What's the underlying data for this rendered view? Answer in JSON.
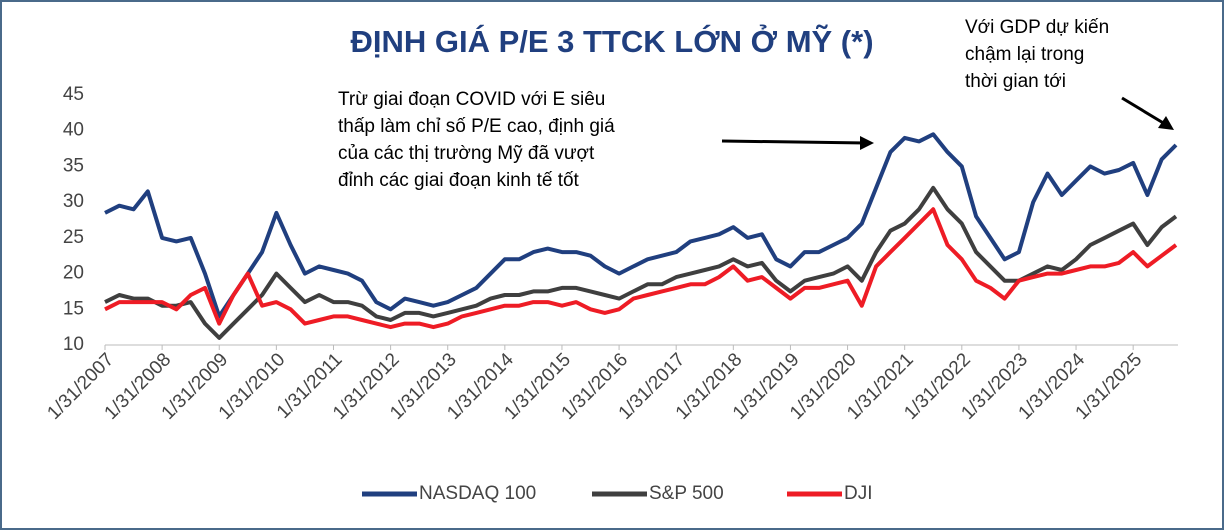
{
  "chart_data": {
    "type": "line",
    "title": "ĐỊNH GIÁ P/E 3 TTCK LỚN Ở MỸ (*)",
    "annotations": [
      {
        "lines": [
          "Trừ giai đoạn COVID với E siêu",
          "thấp làm chỉ số P/E cao, định giá",
          "của các thị trường Mỹ đã vượt",
          "đỉnh các giai đoạn kinh tế tốt"
        ]
      },
      {
        "lines": [
          "Với GDP dự kiến",
          "chậm lại trong",
          "thời gian tới"
        ]
      }
    ],
    "x": [
      "1/31/2007",
      "4/30/2007",
      "7/31/2007",
      "10/31/2007",
      "1/31/2008",
      "4/30/2008",
      "7/31/2008",
      "10/31/2008",
      "1/31/2009",
      "4/30/2009",
      "7/31/2009",
      "10/31/2009",
      "1/31/2010",
      "4/30/2010",
      "7/31/2010",
      "10/31/2010",
      "1/31/2011",
      "4/30/2011",
      "7/31/2011",
      "10/31/2011",
      "1/31/2012",
      "4/30/2012",
      "7/31/2012",
      "10/31/2012",
      "1/31/2013",
      "4/30/2013",
      "7/31/2013",
      "10/31/2013",
      "1/31/2014",
      "4/30/2014",
      "7/31/2014",
      "10/31/2014",
      "1/31/2015",
      "4/30/2015",
      "7/31/2015",
      "10/31/2015",
      "1/31/2016",
      "4/30/2016",
      "7/31/2016",
      "10/31/2016",
      "1/31/2017",
      "4/30/2017",
      "7/31/2017",
      "10/31/2017",
      "1/31/2018",
      "4/30/2018",
      "7/31/2018",
      "10/31/2018",
      "1/31/2019",
      "4/30/2019",
      "7/31/2019",
      "10/31/2019",
      "1/31/2020",
      "4/30/2020",
      "7/31/2020",
      "10/31/2020",
      "1/31/2021",
      "4/30/2021",
      "7/31/2021",
      "10/31/2021",
      "1/31/2022",
      "4/30/2022",
      "7/31/2022",
      "10/31/2022",
      "1/31/2023",
      "4/30/2023",
      "7/31/2023",
      "10/31/2023",
      "1/31/2024",
      "4/30/2024",
      "7/31/2024",
      "10/31/2024",
      "1/31/2025",
      "4/30/2025",
      "7/31/2025",
      "10/31/2025"
    ],
    "xtick_index": [
      0,
      4,
      8,
      12,
      16,
      20,
      24,
      28,
      32,
      36,
      40,
      44,
      48,
      52,
      56,
      60,
      64,
      68,
      72
    ],
    "ylim": [
      10,
      45
    ],
    "yticks": [
      10,
      15,
      20,
      25,
      30,
      35,
      40,
      45
    ],
    "legend": "bottom",
    "series": [
      {
        "name": "NASDAQ 100",
        "color": "#203f7f",
        "values": [
          28.5,
          29.5,
          29,
          31.5,
          25,
          24.5,
          25,
          20,
          14,
          17,
          20,
          23,
          28.5,
          24,
          20,
          21,
          20.5,
          20,
          19,
          16,
          15,
          16.5,
          16,
          15.5,
          16,
          17,
          18,
          20,
          22,
          22,
          23,
          23.5,
          23,
          23,
          22.5,
          21,
          20,
          21,
          22,
          22.5,
          23,
          24.5,
          25,
          25.5,
          26.5,
          25,
          25.5,
          22,
          21,
          23,
          23,
          24,
          25,
          27,
          32,
          37,
          39,
          38.5,
          39.5,
          37,
          35,
          28,
          25,
          22,
          23,
          30,
          34,
          31,
          33,
          35,
          34,
          34.5,
          35.5,
          31,
          36,
          38
        ]
      },
      {
        "name": "S&P 500",
        "color": "#3f3f3f",
        "values": [
          16,
          17,
          16.5,
          16.5,
          15.5,
          15.5,
          16,
          13,
          11,
          13,
          15,
          17,
          20,
          18,
          16,
          17,
          16,
          16,
          15.5,
          14,
          13.5,
          14.5,
          14.5,
          14,
          14.5,
          15,
          15.5,
          16.5,
          17,
          17,
          17.5,
          17.5,
          18,
          18,
          17.5,
          17,
          16.5,
          17.5,
          18.5,
          18.5,
          19.5,
          20,
          20.5,
          21,
          22,
          21,
          21.5,
          19,
          17.5,
          19,
          19.5,
          20,
          21,
          19,
          23,
          26,
          27,
          29,
          32,
          29,
          27,
          23,
          21,
          19,
          19,
          20,
          21,
          20.5,
          22,
          24,
          25,
          26,
          27,
          24,
          26.5,
          28
        ]
      },
      {
        "name": "DJI",
        "color": "#ee1c25",
        "values": [
          15,
          16,
          16,
          16,
          16,
          15,
          17,
          18,
          13,
          17,
          20,
          15.5,
          16,
          15,
          13,
          13.5,
          14,
          14,
          13.5,
          13,
          12.5,
          13,
          13,
          12.5,
          13,
          14,
          14.5,
          15,
          15.5,
          15.5,
          16,
          16,
          15.5,
          16,
          15,
          14.5,
          15,
          16.5,
          17,
          17.5,
          18,
          18.5,
          18.5,
          19.5,
          21,
          19,
          19.5,
          18,
          16.5,
          18,
          18,
          18.5,
          19,
          15.5,
          21,
          23,
          25,
          27,
          29,
          24,
          22,
          19,
          18,
          16.5,
          19,
          19.5,
          20,
          20,
          20.5,
          21,
          21,
          21.5,
          23,
          21,
          22.5,
          24
        ]
      }
    ]
  }
}
